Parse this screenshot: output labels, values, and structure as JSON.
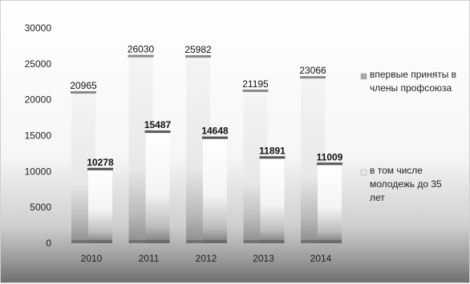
{
  "chart_data": {
    "type": "bar",
    "categories": [
      "2010",
      "2011",
      "2012",
      "2013",
      "2014"
    ],
    "series": [
      {
        "name": "впервые приняты в члены профсоюза",
        "values": [
          20965,
          26030,
          25982,
          21195,
          23066
        ],
        "color": "#e6e6e6"
      },
      {
        "name": "в том числе молодежь до 35 лет",
        "values": [
          10278,
          15487,
          14648,
          11891,
          11009
        ],
        "color": "#ffffff"
      }
    ],
    "y_ticks": [
      "0",
      "5000",
      "10000",
      "15000",
      "20000",
      "25000",
      "30000"
    ],
    "ylim": [
      0,
      30000
    ],
    "grid": false,
    "legend": "right",
    "data_labels": true
  }
}
